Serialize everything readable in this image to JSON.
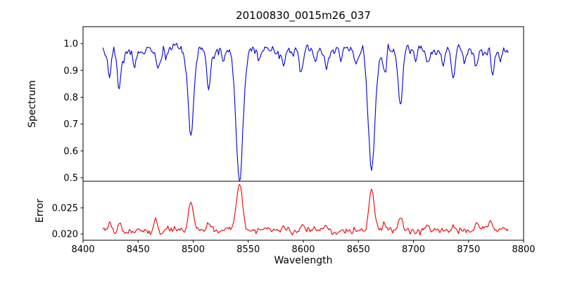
{
  "chart_data": {
    "type": "line",
    "title": "20100830_0015m26_037",
    "xlabel": "Wavelength",
    "xlim": [
      8400,
      8800
    ],
    "x_data_range": [
      8418,
      8786
    ],
    "xtick_values": [
      8400,
      8450,
      8500,
      8550,
      8600,
      8650,
      8700,
      8750,
      8800
    ],
    "xtick_labels": [
      "8400",
      "8450",
      "8500",
      "8550",
      "8600",
      "8650",
      "8700",
      "8750",
      "8800"
    ],
    "grid": false,
    "legend": false,
    "panels": [
      {
        "name": "spectrum",
        "ylabel": "Spectrum",
        "ylim": [
          0.487,
          1.063
        ],
        "ytick_values": [
          0.5,
          0.6,
          0.7,
          0.8,
          0.9,
          1.0
        ],
        "ytick_labels": [
          "0.5",
          "0.6",
          "0.7",
          "0.8",
          "0.9",
          "1.0"
        ],
        "color": "#0000dd",
        "continuum": 0.975,
        "noise_sigma": 0.014,
        "absorption_lines": [
          {
            "center": 8424,
            "depth": 0.09,
            "sigma": 1.6
          },
          {
            "center": 8433,
            "depth": 0.15,
            "sigma": 1.9
          },
          {
            "center": 8447,
            "depth": 0.06,
            "sigma": 1.4
          },
          {
            "center": 8468,
            "depth": 0.07,
            "sigma": 1.5
          },
          {
            "center": 8476,
            "depth": 0.04,
            "sigma": 1.2
          },
          {
            "center": 8498,
            "depth": 0.31,
            "sigma": 2.6
          },
          {
            "center": 8514,
            "depth": 0.13,
            "sigma": 1.8
          },
          {
            "center": 8527,
            "depth": 0.05,
            "sigma": 1.3
          },
          {
            "center": 8542,
            "depth": 0.48,
            "sigma": 3.2
          },
          {
            "center": 8560,
            "depth": 0.04,
            "sigma": 1.2
          },
          {
            "center": 8582,
            "depth": 0.07,
            "sigma": 1.4
          },
          {
            "center": 8598,
            "depth": 0.09,
            "sigma": 1.6
          },
          {
            "center": 8611,
            "depth": 0.05,
            "sigma": 1.2
          },
          {
            "center": 8621,
            "depth": 0.07,
            "sigma": 1.4
          },
          {
            "center": 8634,
            "depth": 0.04,
            "sigma": 1.2
          },
          {
            "center": 8648,
            "depth": 0.05,
            "sigma": 1.3
          },
          {
            "center": 8662,
            "depth": 0.44,
            "sigma": 3.0
          },
          {
            "center": 8674,
            "depth": 0.1,
            "sigma": 1.5
          },
          {
            "center": 8688,
            "depth": 0.21,
            "sigma": 2.0
          },
          {
            "center": 8702,
            "depth": 0.04,
            "sigma": 1.2
          },
          {
            "center": 8713,
            "depth": 0.06,
            "sigma": 1.4
          },
          {
            "center": 8727,
            "depth": 0.04,
            "sigma": 1.2
          },
          {
            "center": 8736,
            "depth": 0.1,
            "sigma": 1.6
          },
          {
            "center": 8747,
            "depth": 0.05,
            "sigma": 1.3
          },
          {
            "center": 8757,
            "depth": 0.07,
            "sigma": 1.4
          },
          {
            "center": 8772,
            "depth": 0.08,
            "sigma": 1.6
          },
          {
            "center": 8779,
            "depth": 0.05,
            "sigma": 1.2
          }
        ]
      },
      {
        "name": "error",
        "ylabel": "Error",
        "ylim": [
          0.0188,
          0.0301
        ],
        "ytick_values": [
          0.02,
          0.025
        ],
        "ytick_labels": [
          "0.020",
          "0.025"
        ],
        "color": "#ee0000",
        "baseline": 0.0207,
        "noise_sigma": 0.00045,
        "peaks": [
          {
            "center": 8424,
            "height": 0.0012,
            "sigma": 1.6
          },
          {
            "center": 8433,
            "height": 0.0012,
            "sigma": 1.8
          },
          {
            "center": 8466,
            "height": 0.0022,
            "sigma": 1.4
          },
          {
            "center": 8498,
            "height": 0.0055,
            "sigma": 2.2
          },
          {
            "center": 8514,
            "height": 0.0014,
            "sigma": 1.6
          },
          {
            "center": 8542,
            "height": 0.0088,
            "sigma": 2.6
          },
          {
            "center": 8582,
            "height": 0.0008,
            "sigma": 1.4
          },
          {
            "center": 8598,
            "height": 0.0009,
            "sigma": 1.5
          },
          {
            "center": 8621,
            "height": 0.0008,
            "sigma": 1.4
          },
          {
            "center": 8662,
            "height": 0.0078,
            "sigma": 2.4
          },
          {
            "center": 8674,
            "height": 0.0012,
            "sigma": 1.5
          },
          {
            "center": 8688,
            "height": 0.0028,
            "sigma": 1.8
          },
          {
            "center": 8713,
            "height": 0.0008,
            "sigma": 1.4
          },
          {
            "center": 8736,
            "height": 0.001,
            "sigma": 1.5
          },
          {
            "center": 8757,
            "height": 0.0014,
            "sigma": 1.4
          },
          {
            "center": 8770,
            "height": 0.0016,
            "sigma": 2.0
          }
        ]
      }
    ]
  }
}
